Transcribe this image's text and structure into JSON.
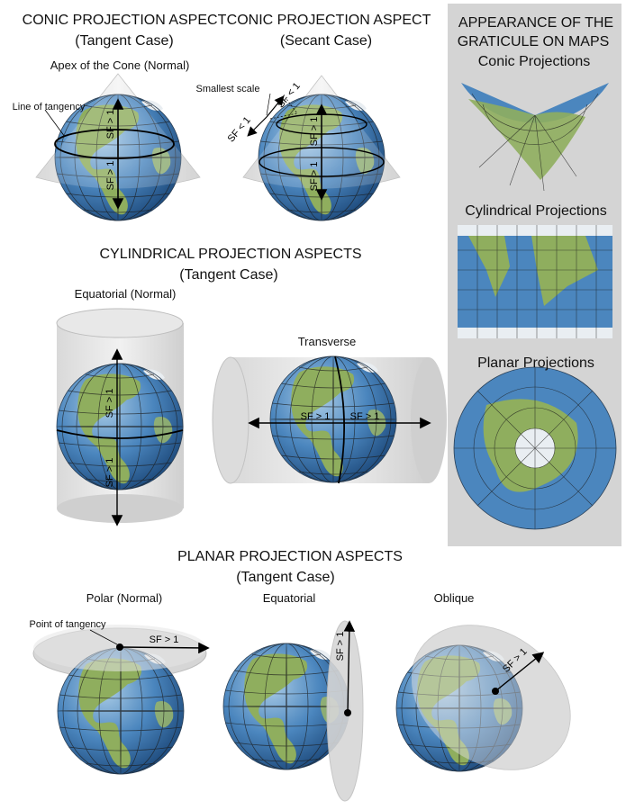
{
  "conic": {
    "tangent_title": "CONIC PROJECTION ASPECT",
    "tangent_sub": "(Tangent Case)",
    "apex_label": "Apex of the Cone (Normal)",
    "tangency_line_label": "Line of tangency",
    "secant_title": "CONIC PROJECTION ASPECT",
    "secant_sub": "(Secant Case)",
    "smallest_scale_label": "Smallest scale"
  },
  "cylindrical": {
    "title": "CYLINDRICAL PROJECTION ASPECTS",
    "sub": "(Tangent Case)",
    "equatorial_label": "Equatorial (Normal)",
    "transverse_label": "Transverse"
  },
  "planar": {
    "title": "PLANAR PROJECTION ASPECTS",
    "sub": "(Tangent Case)",
    "polar_label": "Polar (Normal)",
    "equatorial_label": "Equatorial",
    "oblique_label": "Oblique",
    "point_tangency_label": "Point of tangency"
  },
  "panel": {
    "title_line1": "APPEARANCE OF THE",
    "title_line2": "GRATICULE ON MAPS",
    "conic_label": "Conic Projections",
    "cylindrical_label": "Cylindrical Projections",
    "planar_label": "Planar Projections"
  },
  "scale_labels": {
    "sf_gt_1": "SF > 1",
    "sf_lt_1": "SF < 1"
  },
  "colors": {
    "ocean": "#4b86be",
    "land": "#8fae5e",
    "surface": "#d6d6d6",
    "panel_bg": "#d4d4d4"
  }
}
